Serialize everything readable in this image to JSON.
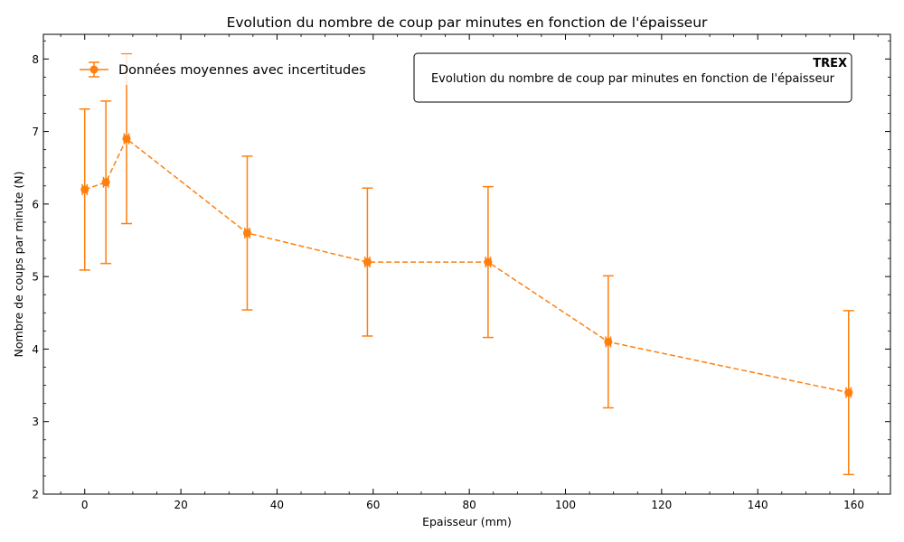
{
  "chart_data": {
    "type": "line",
    "title": "Evolution du nombre de coup par minutes en fonction de l'épaisseur",
    "xlabel": "Epaisseur (mm)",
    "ylabel": "Nombre de coups par minute (N)",
    "xlim": [
      -8.6,
      167.6
    ],
    "ylim": [
      2.0,
      8.34
    ],
    "xticks": [
      0,
      20,
      40,
      60,
      80,
      100,
      120,
      140,
      160
    ],
    "yticks": [
      2,
      3,
      4,
      5,
      6,
      7,
      8
    ],
    "grid": false,
    "legend_placement": "top-left",
    "line_style": "dashed",
    "series": [
      {
        "name": "Données moyennes avec incertitudes",
        "color": "#ff7f0e",
        "x": [
          0,
          4.4,
          8.7,
          33.8,
          58.8,
          83.9,
          108.9,
          158.9
        ],
        "y": [
          6.2,
          6.3,
          6.9,
          5.6,
          5.2,
          5.2,
          4.1,
          3.4
        ],
        "yerr": [
          1.11,
          1.12,
          1.17,
          1.06,
          1.02,
          1.04,
          0.91,
          1.13
        ],
        "xerr": [
          0.5,
          0.5,
          0.5,
          0.5,
          0.5,
          0.5,
          0.5,
          0.5
        ]
      }
    ],
    "annotation": {
      "title": "TREX",
      "subtitle": "Evolution du nombre de coup par minutes en fonction de l'épaisseur",
      "placement": "top-right"
    }
  }
}
